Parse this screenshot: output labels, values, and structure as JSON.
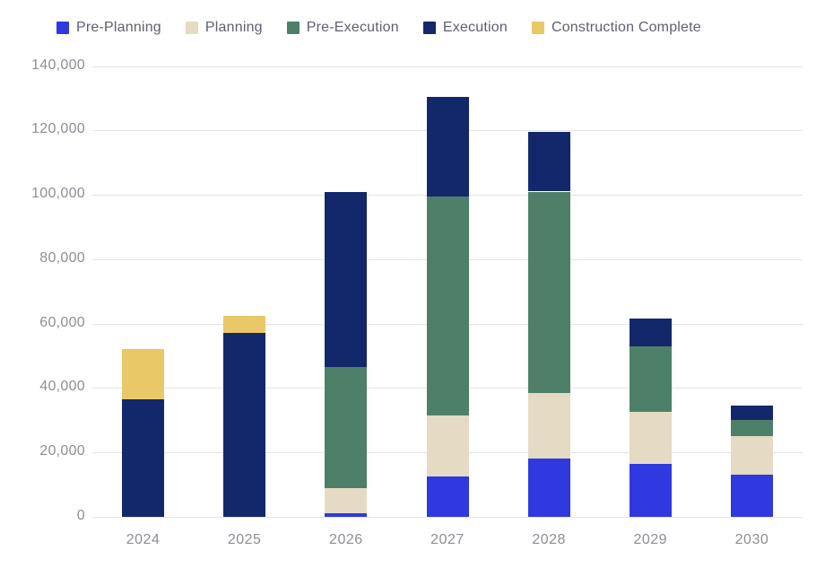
{
  "chart_data": {
    "type": "bar",
    "stacked": true,
    "title": "",
    "categories": [
      "2024",
      "2025",
      "2026",
      "2027",
      "2028",
      "2029",
      "2030"
    ],
    "series": [
      {
        "name": "Pre-Planning",
        "color": "#3038df",
        "values": [
          0,
          0,
          1200,
          12500,
          18000,
          16500,
          13000
        ]
      },
      {
        "name": "Planning",
        "color": "#e5dac3",
        "values": [
          0,
          0,
          7800,
          19000,
          20500,
          16000,
          12000
        ]
      },
      {
        "name": "Pre-Execution",
        "color": "#4e8069",
        "values": [
          0,
          0,
          37500,
          68000,
          62500,
          20500,
          5000
        ]
      },
      {
        "name": "Execution",
        "color": "#13276b",
        "values": [
          36500,
          57000,
          54500,
          31000,
          18500,
          8500,
          4500
        ]
      },
      {
        "name": "Construction Complete",
        "color": "#e9c967",
        "values": [
          15500,
          5500,
          0,
          0,
          0,
          0,
          0
        ]
      }
    ],
    "totals": [
      52000,
      62500,
      101000,
      130500,
      119500,
      61500,
      34500
    ],
    "ylim": [
      0,
      140000
    ],
    "ytick_step": 20000,
    "ytick_labels": [
      "0",
      "20,000",
      "40,000",
      "60,000",
      "80,000",
      "100,000",
      "120,000",
      "140,000"
    ],
    "xlabel": "",
    "ylabel": "",
    "grid": true,
    "legend_position": "top"
  },
  "colors": {
    "background": "#ffffff",
    "grid": "#e4e4e8",
    "tick_text": "#8d8d97",
    "legend_text": "#5e5f72"
  }
}
